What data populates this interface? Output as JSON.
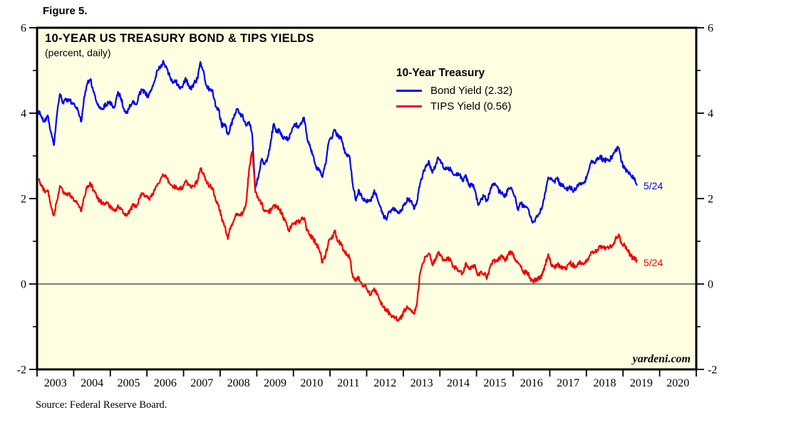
{
  "figure_label": "Figure 5.",
  "source_note": "Source: Federal Reserve Board.",
  "chart": {
    "title": "10-YEAR US TREASURY BOND & TIPS YIELDS",
    "subtitle": "(percent, daily)",
    "watermark": "yardeni.com",
    "background": "#FFFFE2",
    "legend": {
      "heading": "10-Year Treasury",
      "items": [
        {
          "label": "Bond Yield (2.32)",
          "color": "#0000F0"
        },
        {
          "label": "TIPS Yield (0.56)",
          "color": "#F00000"
        }
      ]
    },
    "annotations": [
      {
        "text": "5/24",
        "color": "#0000F0"
      },
      {
        "text": "5/24",
        "color": "#F00000"
      }
    ]
  },
  "chart_data": {
    "type": "line",
    "title": "10-YEAR US TREASURY BOND & TIPS YIELDS",
    "subtitle": "(percent, daily)",
    "x_range": [
      2003,
      2021
    ],
    "y_range": [
      -2,
      6
    ],
    "y_major_ticks": [
      6,
      4,
      2,
      0,
      -2
    ],
    "y_minor_ticks": [
      5,
      3,
      1,
      -1
    ],
    "x_tick_years": [
      2003,
      2004,
      2005,
      2006,
      2007,
      2008,
      2009,
      2010,
      2011,
      2012,
      2013,
      2014,
      2015,
      2016,
      2017,
      2018,
      2019,
      2020
    ],
    "zero_line": 0,
    "x_monthly_start": 2003.0417,
    "x_monthly_step": 0.0833333,
    "grid": "off",
    "legend_position": "inside-top-center",
    "series": [
      {
        "name": "Bond Yield (2.32)",
        "color": "#0000F0",
        "last_value": 2.32,
        "last_date_label": "5/24",
        "values": [
          4.05,
          3.9,
          3.8,
          3.95,
          3.55,
          3.25,
          3.95,
          4.45,
          4.25,
          4.3,
          4.3,
          4.25,
          4.15,
          4.05,
          3.8,
          4.4,
          4.7,
          4.8,
          4.5,
          4.25,
          4.15,
          4.1,
          4.2,
          4.25,
          4.2,
          4.15,
          4.5,
          4.35,
          4.1,
          4.0,
          4.2,
          4.25,
          4.2,
          4.45,
          4.55,
          4.45,
          4.4,
          4.55,
          4.75,
          5.0,
          5.1,
          5.2,
          5.05,
          4.85,
          4.7,
          4.75,
          4.6,
          4.6,
          4.8,
          4.7,
          4.55,
          4.7,
          4.8,
          5.2,
          5.0,
          4.65,
          4.55,
          4.55,
          4.15,
          4.1,
          3.7,
          3.75,
          3.5,
          3.7,
          3.9,
          4.1,
          4.0,
          3.9,
          3.7,
          3.8,
          3.5,
          2.25,
          2.5,
          2.9,
          2.8,
          2.95,
          3.3,
          3.75,
          3.55,
          3.6,
          3.4,
          3.4,
          3.4,
          3.6,
          3.75,
          3.7,
          3.75,
          3.9,
          3.4,
          3.2,
          3.0,
          2.7,
          2.65,
          2.5,
          2.8,
          3.3,
          3.4,
          3.6,
          3.45,
          3.45,
          3.15,
          3.0,
          2.95,
          2.3,
          1.95,
          2.2,
          2.0,
          1.95,
          1.95,
          1.95,
          2.2,
          2.0,
          1.8,
          1.6,
          1.5,
          1.7,
          1.75,
          1.75,
          1.65,
          1.75,
          1.9,
          2.0,
          1.95,
          1.75,
          1.95,
          2.35,
          2.6,
          2.75,
          2.85,
          2.6,
          2.75,
          2.95,
          2.85,
          2.7,
          2.7,
          2.7,
          2.55,
          2.6,
          2.55,
          2.4,
          2.55,
          2.3,
          2.35,
          2.2,
          1.85,
          2.0,
          2.05,
          1.95,
          2.2,
          2.35,
          2.3,
          2.15,
          2.15,
          2.05,
          2.25,
          2.25,
          2.05,
          1.75,
          1.9,
          1.8,
          1.8,
          1.6,
          1.45,
          1.55,
          1.65,
          1.8,
          2.15,
          2.5,
          2.45,
          2.4,
          2.5,
          2.3,
          2.3,
          2.2,
          2.3,
          2.2,
          2.2,
          2.35,
          2.35,
          2.4,
          2.6,
          2.85,
          2.85,
          2.9,
          3.0,
          2.9,
          2.9,
          2.9,
          3.0,
          3.15,
          3.2,
          2.85,
          2.7,
          2.65,
          2.55,
          2.5,
          2.32
        ]
      },
      {
        "name": "TIPS Yield (0.56)",
        "color": "#F00000",
        "last_value": 0.56,
        "last_date_label": "5/24",
        "values": [
          2.45,
          2.3,
          2.15,
          2.2,
          1.85,
          1.6,
          1.95,
          2.3,
          2.15,
          2.1,
          2.1,
          2.05,
          1.95,
          1.85,
          1.7,
          2.05,
          2.3,
          2.35,
          2.2,
          2.05,
          1.95,
          1.9,
          1.9,
          1.85,
          1.75,
          1.7,
          1.85,
          1.75,
          1.65,
          1.6,
          1.75,
          1.85,
          1.8,
          2.0,
          2.1,
          2.05,
          2.0,
          2.05,
          2.2,
          2.35,
          2.45,
          2.55,
          2.5,
          2.35,
          2.25,
          2.3,
          2.25,
          2.25,
          2.4,
          2.35,
          2.25,
          2.3,
          2.4,
          2.7,
          2.6,
          2.4,
          2.3,
          2.25,
          1.95,
          1.85,
          1.55,
          1.35,
          1.05,
          1.35,
          1.5,
          1.65,
          1.6,
          1.7,
          1.9,
          2.7,
          3.1,
          2.15,
          2.0,
          1.9,
          1.7,
          1.7,
          1.7,
          1.85,
          1.8,
          1.75,
          1.6,
          1.45,
          1.25,
          1.4,
          1.45,
          1.45,
          1.5,
          1.55,
          1.25,
          1.15,
          1.05,
          0.95,
          0.8,
          0.5,
          0.65,
          1.0,
          1.05,
          1.25,
          1.0,
          0.95,
          0.8,
          0.7,
          0.6,
          0.15,
          0.1,
          0.15,
          0.0,
          -0.05,
          -0.2,
          -0.25,
          -0.1,
          -0.25,
          -0.4,
          -0.55,
          -0.6,
          -0.7,
          -0.75,
          -0.8,
          -0.85,
          -0.75,
          -0.6,
          -0.55,
          -0.6,
          -0.7,
          -0.45,
          0.25,
          0.5,
          0.65,
          0.7,
          0.45,
          0.55,
          0.75,
          0.65,
          0.55,
          0.6,
          0.55,
          0.4,
          0.35,
          0.3,
          0.25,
          0.5,
          0.35,
          0.4,
          0.45,
          0.2,
          0.3,
          0.25,
          0.15,
          0.4,
          0.55,
          0.55,
          0.6,
          0.65,
          0.55,
          0.7,
          0.75,
          0.6,
          0.5,
          0.4,
          0.25,
          0.3,
          0.15,
          0.05,
          0.1,
          0.15,
          0.2,
          0.45,
          0.7,
          0.45,
          0.4,
          0.45,
          0.4,
          0.4,
          0.35,
          0.5,
          0.45,
          0.4,
          0.5,
          0.5,
          0.5,
          0.55,
          0.75,
          0.75,
          0.8,
          0.9,
          0.85,
          0.85,
          0.85,
          0.9,
          1.05,
          1.15,
          0.95,
          0.9,
          0.8,
          0.65,
          0.6,
          0.56
        ]
      }
    ]
  }
}
